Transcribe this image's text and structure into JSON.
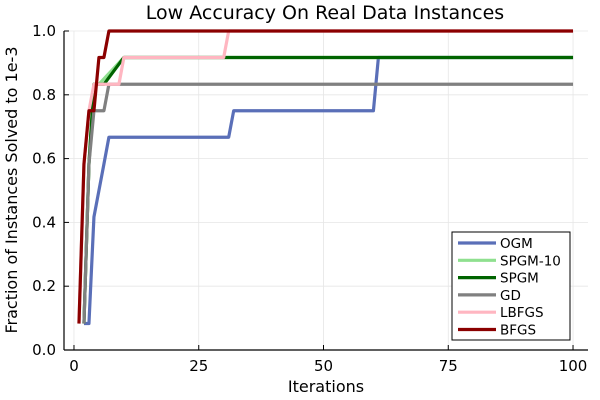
{
  "chart_data": {
    "type": "line",
    "title": "Low Accuracy On Real Data Instances",
    "xlabel": "Iterations",
    "ylabel": "Fraction of Instances Solved  to 1e-3",
    "xlim": [
      -2,
      103
    ],
    "ylim": [
      0,
      1
    ],
    "xticks": [
      0,
      25,
      50,
      75,
      100
    ],
    "yticks": [
      0.0,
      0.2,
      0.4,
      0.6,
      0.8,
      1.0
    ],
    "xtick_labels": [
      "0",
      "25",
      "50",
      "75",
      "100"
    ],
    "ytick_labels": [
      "0.0",
      "0.2",
      "0.4",
      "0.6",
      "0.8",
      "1.0"
    ],
    "grid": true,
    "legend_position": "bottom-right",
    "series": [
      {
        "name": "OGM",
        "color": "#5a6fb8",
        "x": [
          2,
          3,
          4,
          5,
          6,
          7,
          31,
          32,
          60,
          61,
          100
        ],
        "y": [
          0.083,
          0.083,
          0.417,
          0.5,
          0.583,
          0.667,
          0.667,
          0.75,
          0.75,
          0.917,
          0.917
        ]
      },
      {
        "name": "SPGM-10",
        "color": "#8fe08f",
        "x": [
          2,
          3,
          4,
          5,
          10,
          100
        ],
        "y": [
          0.083,
          0.583,
          0.833,
          0.833,
          0.917,
          0.917
        ]
      },
      {
        "name": "SPGM",
        "color": "#006400",
        "x": [
          2,
          3,
          4,
          6,
          10,
          100
        ],
        "y": [
          0.083,
          0.583,
          0.833,
          0.833,
          0.917,
          0.917
        ]
      },
      {
        "name": "GD",
        "color": "#808080",
        "x": [
          2,
          3,
          4,
          6,
          7,
          100
        ],
        "y": [
          0.083,
          0.583,
          0.75,
          0.75,
          0.833,
          0.833
        ]
      },
      {
        "name": "LBFGS",
        "color": "#ffb6c1",
        "x": [
          1,
          2,
          3,
          4,
          5,
          9,
          10,
          30,
          31,
          100
        ],
        "y": [
          0.083,
          0.583,
          0.75,
          0.833,
          0.833,
          0.833,
          0.917,
          0.917,
          1.0,
          1.0
        ]
      },
      {
        "name": "BFGS",
        "color": "#8b0000",
        "x": [
          1,
          2,
          3,
          4,
          5,
          6,
          7,
          100
        ],
        "y": [
          0.083,
          0.583,
          0.75,
          0.75,
          0.917,
          0.917,
          1.0,
          1.0
        ]
      }
    ]
  }
}
